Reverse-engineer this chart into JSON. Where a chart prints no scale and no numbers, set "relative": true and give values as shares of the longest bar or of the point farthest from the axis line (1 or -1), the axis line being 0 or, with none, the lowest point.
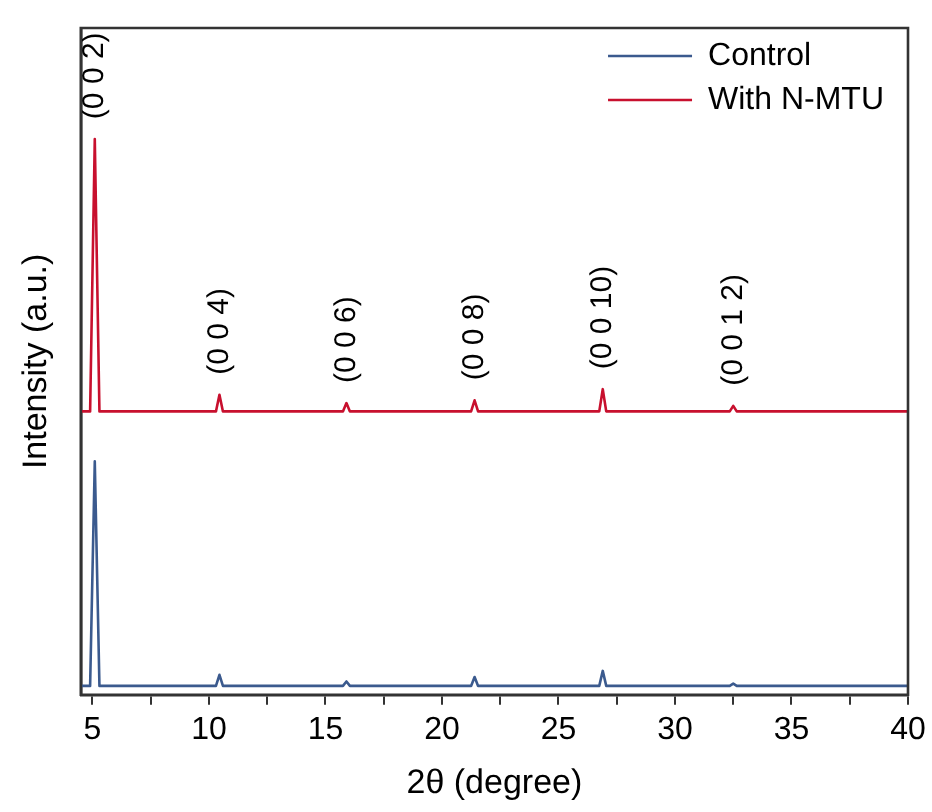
{
  "chart_data": {
    "type": "line",
    "relative": true,
    "xlabel": "2θ (degree)",
    "ylabel": "Intensity (a.u.)",
    "x": [
      4.5,
      4.9,
      5.1,
      5.3,
      10.3,
      10.45,
      10.6,
      15.75,
      15.9,
      16.05,
      21.25,
      21.4,
      21.55,
      26.75,
      26.9,
      27.05,
      32.35,
      32.5,
      32.65,
      40
    ],
    "series": [
      {
        "name": "Control",
        "color": "#3b5a8e",
        "values": [
          0.016,
          0.016,
          0.42,
          0.016,
          0.016,
          0.036,
          0.016,
          0.016,
          0.024,
          0.016,
          0.016,
          0.032,
          0.016,
          0.016,
          0.043,
          0.016,
          0.016,
          0.02,
          0.016,
          0.016
        ]
      },
      {
        "name": "With N-MTU",
        "color": "#c8102e",
        "values": [
          0.51,
          0.51,
          1,
          0.51,
          0.51,
          0.54,
          0.51,
          0.51,
          0.525,
          0.51,
          0.51,
          0.53,
          0.51,
          0.51,
          0.55,
          0.51,
          0.51,
          0.52,
          0.51,
          0.51
        ]
      }
    ],
    "xlim": [
      4.5,
      40
    ],
    "xticks": [
      5,
      {
        "value": 7.5,
        "label": null
      },
      10,
      {
        "value": 12.5,
        "label": null
      },
      15,
      {
        "value": 17.5,
        "label": null
      },
      20,
      {
        "value": 22.5,
        "label": null
      },
      25,
      {
        "value": 27.5,
        "label": null
      },
      30,
      {
        "value": 32.5,
        "label": null
      },
      35,
      {
        "value": 37.5,
        "label": null
      },
      40
    ],
    "annotations": [
      {
        "text": "(0 0 2)",
        "x": 5.1,
        "y": 1
      },
      {
        "text": "(0 0 4)",
        "x": 10.45,
        "y": 0.54
      },
      {
        "text": "(0 0 6)",
        "x": 15.9,
        "y": 0.525
      },
      {
        "text": "(0 0 8)",
        "x": 21.4,
        "y": 0.53
      },
      {
        "text": "(0 0 10)",
        "x": 26.9,
        "y": 0.55
      },
      {
        "text": "(0 0 1 2)",
        "x": 32.5,
        "y": 0.52
      }
    ],
    "legend": "top right",
    "grid": false,
    "marker": "none",
    "line_style": "solid"
  }
}
